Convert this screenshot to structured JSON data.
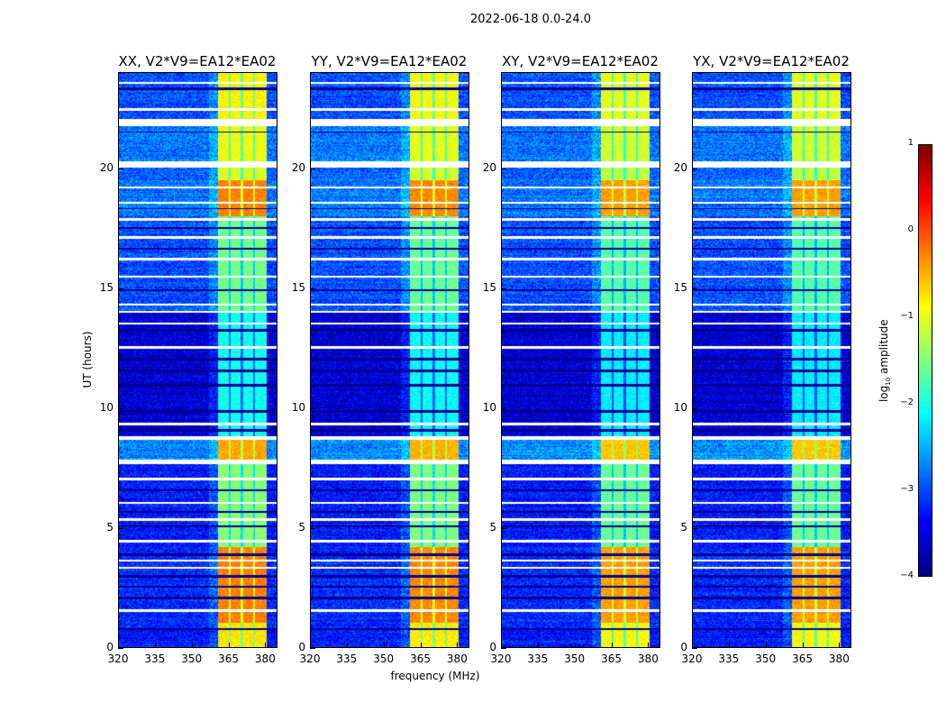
{
  "chart_data": {
    "type": "heatmap",
    "title": "2022-06-18 0.0-24.0",
    "xlabel": "frequency (MHz)",
    "ylabel": "UT (hours)",
    "xlim": [
      320,
      385
    ],
    "ylim": [
      0,
      24
    ],
    "xticks": [
      "320",
      "335",
      "350",
      "365",
      "380"
    ],
    "yticks": [
      "0",
      "5",
      "10",
      "15",
      "20"
    ],
    "colorbar": {
      "label": "log10 amplitude",
      "label_main": "log",
      "label_sub": "10",
      "label_rest": " amplitude",
      "range": [
        -4,
        1
      ],
      "ticks": [
        "1",
        "0",
        "−1",
        "−2",
        "−3",
        "−4"
      ],
      "colormap": "jet"
    },
    "panels": [
      {
        "title": "XX, V2*V9=EA12*EA02",
        "band_gain": 0.15
      },
      {
        "title": "YY, V2*V9=EA12*EA02",
        "band_gain": 0.1
      },
      {
        "title": "XY, V2*V9=EA12*EA02",
        "band_gain": 0.0
      },
      {
        "title": "YX, V2*V9=EA12*EA02",
        "band_gain": 0.0
      }
    ],
    "band_mhz": [
      361,
      381
    ],
    "band_gaps_mhz": [
      365.7,
      370.7,
      375.7
    ],
    "segments_hours": [
      {
        "from": 0,
        "to": 1,
        "background": -3.3,
        "band": -0.9
      },
      {
        "from": 1,
        "to": 4.2,
        "background": -3.2,
        "band": -0.4
      },
      {
        "from": 4.2,
        "to": 7.7,
        "background": -3.3,
        "band": -1.6
      },
      {
        "from": 7.7,
        "to": 8.7,
        "background": -2.7,
        "band": -0.6
      },
      {
        "from": 8.7,
        "to": 14,
        "background": -3.6,
        "band": -2.2
      },
      {
        "from": 14,
        "to": 18,
        "background": -3.0,
        "band": -1.7
      },
      {
        "from": 18,
        "to": 19.5,
        "background": -2.8,
        "band": -0.4
      },
      {
        "from": 19.5,
        "to": 20.2,
        "background": -2.9,
        "band": -1.2
      },
      {
        "from": 20.2,
        "to": 22,
        "background": -2.8,
        "band": -1.1
      },
      {
        "from": 22,
        "to": 24,
        "background": -3.0,
        "band": -1.0
      }
    ],
    "flagged_hours": [
      [
        23.55,
        23.6
      ],
      [
        22.45,
        22.5
      ],
      [
        21.8,
        22.05
      ],
      [
        20.05,
        20.3
      ],
      [
        19.2,
        19.25
      ],
      [
        18.55,
        18.6
      ],
      [
        17.85,
        17.9
      ],
      [
        17.1,
        17.15
      ],
      [
        16.2,
        16.25
      ],
      [
        15.45,
        15.5
      ],
      [
        14.3,
        14.35
      ],
      [
        14.0,
        14.05
      ],
      [
        13.5,
        13.55
      ],
      [
        12.5,
        12.55
      ],
      [
        9.3,
        9.35
      ],
      [
        8.7,
        8.8
      ],
      [
        7.65,
        7.8
      ],
      [
        7.0,
        7.05
      ],
      [
        6.0,
        6.05
      ],
      [
        5.3,
        5.35
      ],
      [
        4.4,
        4.45
      ],
      [
        3.6,
        3.65
      ],
      [
        3.3,
        3.35
      ],
      [
        1.5,
        1.55
      ]
    ],
    "dark_hours": [
      [
        23.3,
        23.4
      ],
      [
        21.5,
        21.55
      ],
      [
        18.3,
        18.35
      ],
      [
        17.5,
        17.55
      ],
      [
        16.6,
        16.7
      ],
      [
        14.9,
        14.95
      ],
      [
        13.2,
        13.3
      ],
      [
        12.0,
        12.1
      ],
      [
        11.5,
        11.6
      ],
      [
        10.9,
        11.0
      ],
      [
        9.8,
        9.9
      ],
      [
        9.0,
        9.1
      ],
      [
        6.5,
        6.6
      ],
      [
        5.6,
        5.7
      ],
      [
        5.0,
        5.1
      ],
      [
        3.8,
        3.9
      ],
      [
        2.9,
        3.0
      ],
      [
        2.5,
        2.55
      ],
      [
        2.0,
        2.1
      ],
      [
        0.7,
        0.8
      ]
    ]
  }
}
